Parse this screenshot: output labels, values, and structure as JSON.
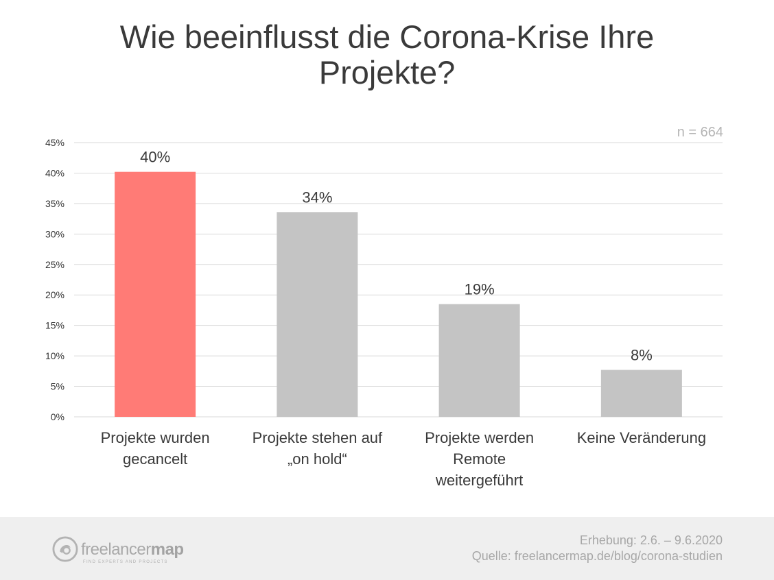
{
  "title": "Wie beeinflusst die Corona-Krise Ihre Projekte?",
  "sample_size": "n = 664",
  "colors": {
    "highlight": "#ff7b76",
    "bar": "#c4c4c4",
    "grid": "#dadada",
    "text": "#3a3a3a",
    "muted": "#a7a7a7"
  },
  "chart_data": {
    "type": "bar",
    "categories": [
      [
        "Projekte wurden",
        "gecancelt"
      ],
      [
        "Projekte stehen auf",
        "„on hold“"
      ],
      [
        "Projekte werden",
        "Remote",
        "weitergeführt"
      ],
      [
        "Keine Veränderung"
      ]
    ],
    "values": [
      40.2,
      33.6,
      18.5,
      7.7
    ],
    "data_labels": [
      "40%",
      "34%",
      "19%",
      "8%"
    ],
    "highlight_index": 0,
    "ylim": [
      0,
      45
    ],
    "yticks": [
      0,
      5,
      10,
      15,
      20,
      25,
      30,
      35,
      40,
      45
    ],
    "ytick_labels": [
      "0%",
      "5%",
      "10%",
      "15%",
      "20%",
      "25%",
      "30%",
      "35%",
      "40%",
      "45%"
    ],
    "grid": true,
    "legend": "none"
  },
  "footer": {
    "logo": {
      "name": "freelancermap-logo",
      "text_light": "freelancer",
      "text_bold": "map",
      "tagline": "FIND EXPERTS AND PROJECTS"
    },
    "survey_date": "Erhebung: 2.6. – 9.6.2020",
    "source": "Quelle: freelancermap.de/blog/corona-studien"
  }
}
